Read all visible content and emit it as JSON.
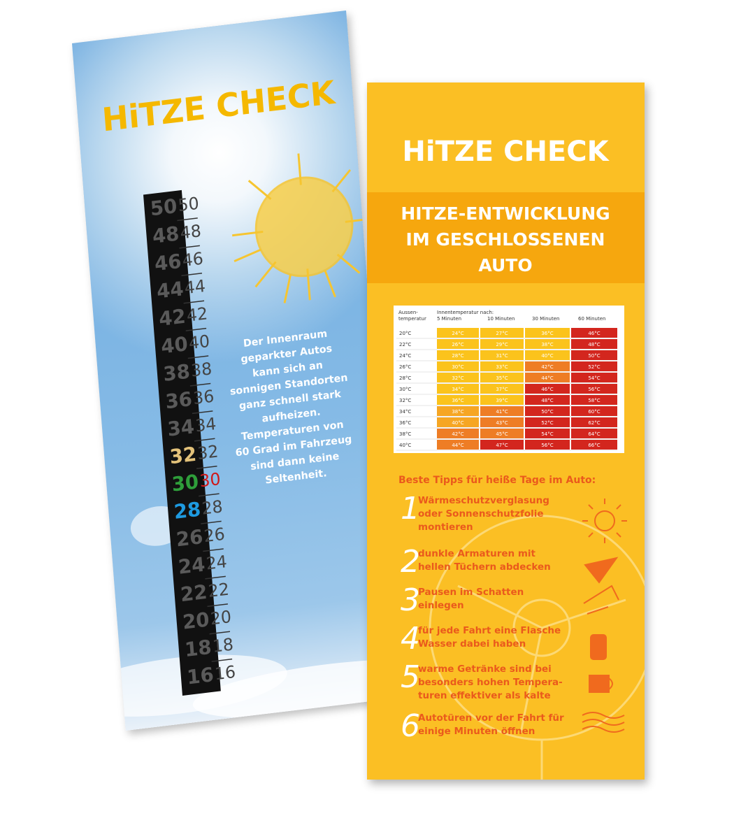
{
  "left_card": {
    "title": "HiTZE CHECK",
    "strip": {
      "values": [
        50,
        48,
        46,
        44,
        42,
        40,
        38,
        36,
        34,
        32,
        30,
        28,
        26,
        24,
        22,
        20,
        18,
        16
      ],
      "colors": [
        "#5a5a5a",
        "#5a5a5a",
        "#5a5a5a",
        "#5a5a5a",
        "#5a5a5a",
        "#5a5a5a",
        "#5a5a5a",
        "#5a5a5a",
        "#5a5a5a",
        "#e3c27a",
        "#2e9e3a",
        "#1e9ae0",
        "#5a5a5a",
        "#5a5a5a",
        "#5a5a5a",
        "#5a5a5a",
        "#5a5a5a",
        "#5a5a5a"
      ]
    },
    "scale": {
      "values": [
        50,
        48,
        46,
        44,
        42,
        40,
        38,
        36,
        34,
        32,
        30,
        28,
        26,
        24,
        22,
        20,
        18,
        16
      ],
      "colors": [
        "#444",
        "#444",
        "#444",
        "#444",
        "#444",
        "#444",
        "#444",
        "#444",
        "#444",
        "#444",
        "#d01818",
        "#444",
        "#444",
        "#444",
        "#444",
        "#444",
        "#444",
        "#444"
      ]
    },
    "text": [
      "Der Innenraum",
      "geparkter Autos",
      "kann sich an",
      "sonnigen Standorten",
      "ganz schnell stark",
      "aufheizen.",
      "Temperaturen von",
      "60 Grad im Fahrzeug",
      "sind dann keine",
      "Seltenheit."
    ]
  },
  "right_card": {
    "title": "HiTZE CHECK",
    "heading": [
      "HITZE-ENTWICKLUNG",
      "IM GESCHLOSSENEN",
      "AUTO"
    ],
    "table": {
      "header_first": [
        "Aussen-",
        "temperatur"
      ],
      "header_group": "Innentemperatur nach:",
      "columns": [
        "5 Minuten",
        "10 Minuten",
        "30 Minuten",
        "60 Minuten"
      ],
      "rows": [
        [
          "20°C",
          "24°C",
          "27°C",
          "36°C",
          "46°C"
        ],
        [
          "22°C",
          "26°C",
          "29°C",
          "38°C",
          "48°C"
        ],
        [
          "24°C",
          "28°C",
          "31°C",
          "40°C",
          "50°C"
        ],
        [
          "26°C",
          "30°C",
          "33°C",
          "42°C",
          "52°C"
        ],
        [
          "28°C",
          "32°C",
          "35°C",
          "44°C",
          "54°C"
        ],
        [
          "30°C",
          "34°C",
          "37°C",
          "46°C",
          "56°C"
        ],
        [
          "32°C",
          "36°C",
          "39°C",
          "48°C",
          "58°C"
        ],
        [
          "34°C",
          "38°C",
          "41°C",
          "50°C",
          "60°C"
        ],
        [
          "36°C",
          "40°C",
          "43°C",
          "52°C",
          "62°C"
        ],
        [
          "38°C",
          "42°C",
          "45°C",
          "54°C",
          "64°C"
        ],
        [
          "40°C",
          "44°C",
          "47°C",
          "56°C",
          "66°C"
        ]
      ],
      "colors": [
        [
          "#fbc31c",
          "#fbc31c",
          "#fbc31c",
          "#d3261e"
        ],
        [
          "#fbc31c",
          "#fbc31c",
          "#fbc31c",
          "#d3261e"
        ],
        [
          "#fbc31c",
          "#fbc31c",
          "#fbc31c",
          "#d3261e"
        ],
        [
          "#fbc31c",
          "#fbc31c",
          "#ee7d25",
          "#d3261e"
        ],
        [
          "#fbc31c",
          "#fbc31c",
          "#ee7d25",
          "#d3261e"
        ],
        [
          "#fbc31c",
          "#fbc31c",
          "#d3261e",
          "#d3261e"
        ],
        [
          "#fbc31c",
          "#fbc31c",
          "#d3261e",
          "#d3261e"
        ],
        [
          "#f6a623",
          "#ee7d25",
          "#d3261e",
          "#d3261e"
        ],
        [
          "#f6a623",
          "#ee7d25",
          "#d3261e",
          "#d3261e"
        ],
        [
          "#ee7d25",
          "#ee7d25",
          "#d3261e",
          "#d3261e"
        ],
        [
          "#ee7d25",
          "#d3261e",
          "#d3261e",
          "#d3261e"
        ]
      ]
    },
    "tips_title": "Beste Tipps für heiße Tage im Auto:",
    "tips": [
      {
        "number": "1",
        "lines": [
          "Wärmeschutzverglasung",
          "oder Sonnenschutzfolie",
          "montieren"
        ]
      },
      {
        "number": "2",
        "lines": [
          "dunkle Armaturen mit",
          "hellen Tüchern abdecken"
        ]
      },
      {
        "number": "3",
        "lines": [
          "Pausen im Schatten",
          "einlegen"
        ]
      },
      {
        "number": "4",
        "lines": [
          "für jede Fahrt eine Flasche",
          "Wasser dabei haben"
        ]
      },
      {
        "number": "5",
        "lines": [
          "warme Getränke sind bei",
          "besonders hohen Tempera-",
          "turen effektiver als kalte"
        ]
      },
      {
        "number": "6",
        "lines": [
          "Autotüren vor der Fahrt für",
          "einige Minuten öffnen"
        ]
      }
    ]
  }
}
